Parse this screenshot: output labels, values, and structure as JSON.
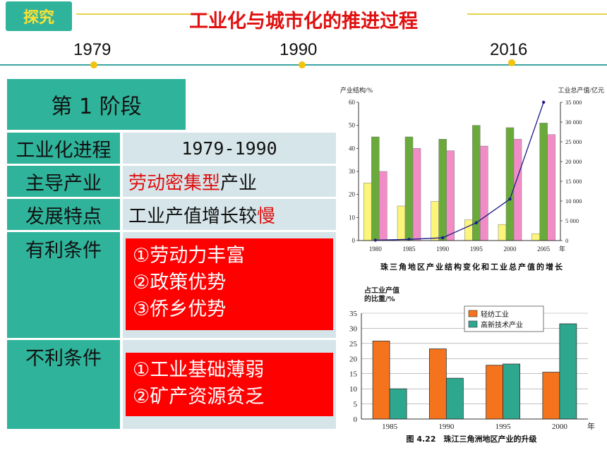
{
  "header": {
    "tag": "探究",
    "title": "工业化与城市化的推进过程"
  },
  "timeline": {
    "years": [
      "1979",
      "1990",
      "2016"
    ]
  },
  "stage": {
    "label": "第 1 阶段"
  },
  "table": {
    "rows": [
      {
        "label": "工业化进程",
        "value": "1979-1990"
      },
      {
        "label": "主导产业",
        "value_red": "劳动密集型",
        "value_rest": "产业"
      },
      {
        "label": "发展特点",
        "value_rest": "工业产值增长较",
        "value_red": "慢"
      }
    ],
    "advantages": {
      "label": "有利条件",
      "items": [
        "①劳动力丰富",
        "②政策优势",
        "③侨乡优势"
      ]
    },
    "disadvantages": {
      "label": "不利条件",
      "items": [
        "①工业基础薄弱",
        "②矿产资源贫乏"
      ]
    }
  },
  "colors": {
    "teal": "#2fb39a",
    "red": "#fe0000",
    "title_red": "#e01010",
    "gold": "#f3c20c",
    "yellow_line": "#e2d54a"
  },
  "chart_data": [
    {
      "type": "bar",
      "caption": "珠三角地区产业结构变化和工业总产值的增长",
      "ylabel_left": "产业结构/%",
      "ylabel_right": "工业总产值/亿元",
      "xunit": "年",
      "categories": [
        "1980",
        "1985",
        "1990",
        "1995",
        "2000",
        "2005"
      ],
      "ylim": [
        0,
        60
      ],
      "yticks": [
        0,
        10,
        20,
        30,
        40,
        50,
        60
      ],
      "y2lim": [
        0,
        35000
      ],
      "y2ticks": [
        0,
        5000,
        10000,
        15000,
        20000,
        25000,
        30000,
        35000
      ],
      "series": [
        {
          "values": [
            25,
            15,
            17,
            9,
            7,
            3
          ],
          "color": "#fbf57a"
        },
        {
          "values": [
            45,
            45,
            44,
            50,
            49,
            51
          ],
          "color": "#6aaa3a"
        },
        {
          "values": [
            30,
            40,
            39,
            41,
            44,
            46
          ],
          "color": "#f28cc6"
        }
      ],
      "line": {
        "values": [
          100,
          300,
          700,
          4500,
          10500,
          35000
        ],
        "color": "#1c1c8a"
      }
    },
    {
      "type": "bar",
      "caption": "图 4.22　珠江三角洲地区产业的升级",
      "ylabel": "占工业产值的比重/%",
      "xunit": "年",
      "categories": [
        "1985",
        "1990",
        "1995",
        "2000"
      ],
      "ylim": [
        0,
        35
      ],
      "yticks": [
        0,
        5,
        10,
        15,
        20,
        25,
        30,
        35
      ],
      "series": [
        {
          "name": "轻纺工业",
          "values": [
            25.8,
            23.2,
            17.8,
            15.5
          ],
          "color": "#f4731c"
        },
        {
          "name": "高新技术产业",
          "values": [
            10,
            13.5,
            18.2,
            31.5
          ],
          "color": "#2ea78f"
        }
      ]
    }
  ]
}
